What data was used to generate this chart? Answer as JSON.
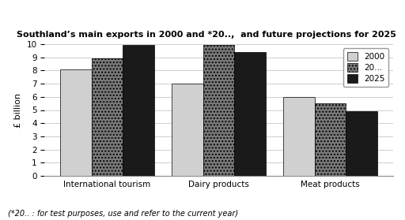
{
  "title": "Southland’s main exports in 2000 and *20..,  and future projections for 2025",
  "footnote": "(*20.. : for test purposes, use and refer to the current year)",
  "categories": [
    "International tourism",
    "Dairy products",
    "Meat products"
  ],
  "series": {
    "2000": [
      8.1,
      7.0,
      6.0
    ],
    "20...": [
      8.9,
      9.9,
      5.5
    ],
    "2025": [
      9.9,
      9.4,
      4.9
    ]
  },
  "legend_labels": [
    "2000",
    "20...",
    "2025"
  ],
  "ylabel": "£ billion",
  "ylim": [
    0,
    10
  ],
  "yticks": [
    0,
    1,
    2,
    3,
    4,
    5,
    6,
    7,
    8,
    9,
    10
  ],
  "bar_colors": [
    "#d0d0d0",
    "#7a7a7a",
    "#1a1a1a"
  ],
  "bar_hatches": [
    "",
    "....",
    ""
  ],
  "background_color": "#ffffff",
  "plot_bg_color": "#ffffff",
  "grid_color": "#bbbbbb",
  "bar_width": 0.28,
  "title_fontsize": 8.0,
  "ylabel_fontsize": 8,
  "tick_fontsize": 7.5,
  "legend_fontsize": 7.5
}
